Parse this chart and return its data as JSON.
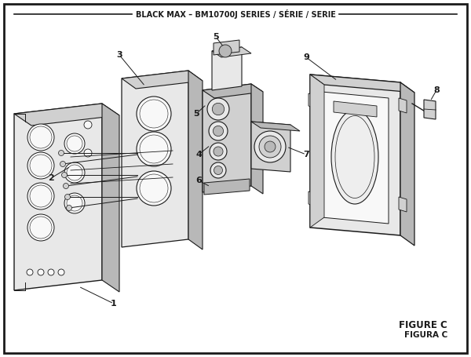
{
  "title": "BLACK MAX – BM10700J SERIES / SÉRIE / SERIE",
  "figure_label": "FIGURE C",
  "figura_label": "FIGURA C",
  "bg_color": "#ffffff",
  "lc": "#1a1a1a",
  "fc_light": "#e8e8e8",
  "fc_mid": "#d0d0d0",
  "fc_dark": "#b8b8b8",
  "fc_white": "#f8f8f8"
}
